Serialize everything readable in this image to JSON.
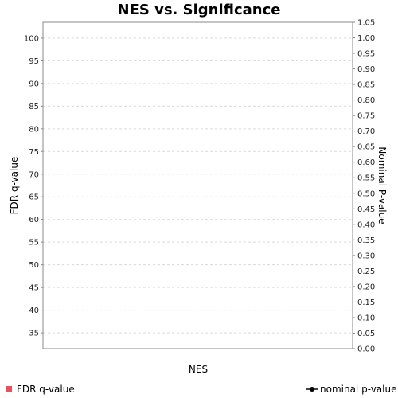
{
  "chart_data": {
    "type": "line",
    "title": "NES vs. Significance",
    "xlabel": "NES",
    "ylabel_left": "FDR q-value",
    "ylabel_right": "Nominal P-value",
    "ylim_left": [
      31.5,
      103.5
    ],
    "ylim_right": [
      0.0,
      1.05
    ],
    "left_ticks": [
      "35",
      "40",
      "45",
      "50",
      "55",
      "60",
      "65",
      "70",
      "75",
      "80",
      "85",
      "90",
      "95",
      "100"
    ],
    "right_ticks": [
      "0.00",
      "0.05",
      "0.10",
      "0.15",
      "0.20",
      "0.25",
      "0.30",
      "0.35",
      "0.40",
      "0.45",
      "0.50",
      "0.55",
      "0.60",
      "0.65",
      "0.70",
      "0.75",
      "0.80",
      "0.85",
      "0.90",
      "0.95",
      "1.00",
      "1.05"
    ],
    "grid": true,
    "legend_position": "bottom",
    "series": [
      {
        "name": "FDR q-value",
        "axis": "left",
        "color": "#e8505b",
        "marker": "square",
        "values": []
      },
      {
        "name": "nominal p-value",
        "axis": "right",
        "color": "#000000",
        "marker": "line-dot",
        "values": []
      }
    ]
  }
}
